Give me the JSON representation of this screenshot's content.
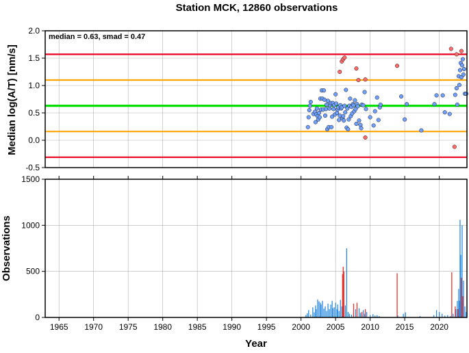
{
  "chart_data": [
    {
      "type": "scatter",
      "title": "Station MCK, 12860 observations",
      "ylabel": "Median log(A/T) [nm/s]",
      "annotation": "median = 0.63, smad = 0.47",
      "xlim": [
        1963,
        2024
      ],
      "ylim": [
        -0.5,
        2.0
      ],
      "y_ticks": [
        -0.5,
        0.0,
        0.5,
        1.0,
        1.5,
        2.0
      ],
      "y_tick_labels": [
        "-0.5",
        "0.0",
        "0.5",
        "1.0",
        "1.5",
        "2.0"
      ],
      "grid": true,
      "reference_lines": [
        {
          "value": 1.57,
          "color": "#e8001c"
        },
        {
          "value": 1.1,
          "color": "#ffa500"
        },
        {
          "value": 0.63,
          "color": "#00e000"
        },
        {
          "value": 0.16,
          "color": "#ffa500"
        },
        {
          "value": -0.31,
          "color": "#e8001c"
        }
      ],
      "series": [
        {
          "color": "#6fa0ff",
          "points": [
            [
              2001.0,
              0.24
            ],
            [
              2001.1,
              0.42
            ],
            [
              2001.2,
              0.55
            ],
            [
              2001.3,
              0.63
            ],
            [
              2001.4,
              0.7
            ],
            [
              2001.8,
              0.48
            ],
            [
              2002.0,
              0.52
            ],
            [
              2002.1,
              0.33
            ],
            [
              2002.2,
              0.47
            ],
            [
              2002.3,
              0.58
            ],
            [
              2002.4,
              0.44
            ],
            [
              2002.5,
              0.38
            ],
            [
              2002.6,
              0.5
            ],
            [
              2002.7,
              0.42
            ],
            [
              2002.8,
              0.76
            ],
            [
              2002.9,
              0.56
            ],
            [
              2003.0,
              0.91
            ],
            [
              2003.1,
              0.76
            ],
            [
              2003.2,
              0.56
            ],
            [
              2003.3,
              0.91
            ],
            [
              2003.4,
              0.74
            ],
            [
              2003.5,
              0.45
            ],
            [
              2003.6,
              0.57
            ],
            [
              2003.7,
              0.65
            ],
            [
              2003.8,
              0.2
            ],
            [
              2003.9,
              0.72
            ],
            [
              2004.0,
              0.24
            ],
            [
              2004.1,
              0.58
            ],
            [
              2004.2,
              0.64
            ],
            [
              2004.3,
              0.68
            ],
            [
              2004.4,
              0.24
            ],
            [
              2004.5,
              0.43
            ],
            [
              2004.6,
              0.68
            ],
            [
              2004.7,
              0.57
            ],
            [
              2004.8,
              0.64
            ],
            [
              2004.9,
              0.47
            ],
            [
              2005.0,
              0.84
            ],
            [
              2005.1,
              0.67
            ],
            [
              2005.2,
              0.5
            ],
            [
              2005.3,
              0.56
            ],
            [
              2005.4,
              0.6
            ],
            [
              2005.5,
              0.37
            ],
            [
              2005.6,
              0.45
            ],
            [
              2005.7,
              0.64
            ],
            [
              2005.8,
              0.58
            ],
            [
              2005.9,
              0.6
            ],
            [
              2006.0,
              0.4
            ],
            [
              2006.1,
              0.44
            ],
            [
              2006.2,
              0.36
            ],
            [
              2006.3,
              0.63
            ],
            [
              2006.4,
              0.51
            ],
            [
              2006.5,
              0.92
            ],
            [
              2006.6,
              0.23
            ],
            [
              2006.7,
              0.58
            ],
            [
              2006.8,
              0.2
            ],
            [
              2006.9,
              0.38
            ],
            [
              2007.0,
              0.63
            ],
            [
              2007.1,
              0.76
            ],
            [
              2007.2,
              0.44
            ],
            [
              2007.3,
              0.61
            ],
            [
              2007.4,
              0.49
            ],
            [
              2007.5,
              0.66
            ],
            [
              2007.6,
              0.64
            ],
            [
              2007.7,
              0.53
            ],
            [
              2007.8,
              0.73
            ],
            [
              2007.9,
              0.57
            ],
            [
              2008.0,
              0.3
            ],
            [
              2008.1,
              0.66
            ],
            [
              2008.2,
              0.62
            ],
            [
              2008.4,
              0.36
            ],
            [
              2008.6,
              0.28
            ],
            [
              2008.7,
              0.22
            ],
            [
              2008.8,
              0.65
            ],
            [
              2009.0,
              0.64
            ],
            [
              2009.2,
              0.88
            ],
            [
              2009.4,
              0.57
            ],
            [
              2010.0,
              0.42
            ],
            [
              2010.5,
              0.27
            ],
            [
              2010.7,
              0.53
            ],
            [
              2011.0,
              0.78
            ],
            [
              2011.2,
              0.37
            ],
            [
              2011.4,
              0.6
            ],
            [
              2011.5,
              0.65
            ],
            [
              2014.5,
              0.8
            ],
            [
              2015.0,
              0.38
            ],
            [
              2015.3,
              0.66
            ],
            [
              2017.4,
              0.18
            ],
            [
              2019.3,
              0.66
            ],
            [
              2019.6,
              0.82
            ],
            [
              2020.5,
              0.82
            ],
            [
              2020.8,
              0.51
            ],
            [
              2021.5,
              0.48
            ],
            [
              2022.3,
              0.83
            ],
            [
              2022.5,
              0.95
            ],
            [
              2022.6,
              0.65
            ],
            [
              2022.8,
              1.17
            ],
            [
              2022.9,
              1.01
            ],
            [
              2023.0,
              1.28
            ],
            [
              2023.1,
              1.41
            ],
            [
              2023.2,
              1.15
            ],
            [
              2023.3,
              1.37
            ],
            [
              2023.4,
              1.48
            ],
            [
              2023.5,
              1.2
            ],
            [
              2023.6,
              1.3
            ],
            [
              2023.7,
              0.85
            ],
            [
              2023.9,
              0.85
            ]
          ]
        },
        {
          "color": "#ff6a6a",
          "points": [
            [
              2005.6,
              1.25
            ],
            [
              2005.9,
              1.44
            ],
            [
              2006.1,
              1.48
            ],
            [
              2006.3,
              1.51
            ],
            [
              2008.0,
              1.31
            ],
            [
              2008.3,
              1.1
            ],
            [
              2009.3,
              1.11
            ],
            [
              2009.3,
              0.05
            ],
            [
              2013.9,
              1.36
            ],
            [
              2021.7,
              1.67
            ],
            [
              2022.2,
              -0.12
            ],
            [
              2022.5,
              1.57
            ],
            [
              2023.2,
              1.63
            ]
          ]
        }
      ]
    },
    {
      "type": "bar",
      "xlabel": "Year",
      "ylabel": "Observations",
      "xlim": [
        1963,
        2024
      ],
      "ylim": [
        0,
        1500
      ],
      "x_ticks": [
        1965,
        1970,
        1975,
        1980,
        1985,
        1990,
        1995,
        2000,
        2005,
        2010,
        2015,
        2020
      ],
      "x_tick_labels": [
        "1965",
        "1970",
        "1975",
        "1980",
        "1985",
        "1990",
        "1995",
        "2000",
        "2005",
        "2010",
        "2015",
        "2020"
      ],
      "y_ticks": [
        0,
        500,
        1000,
        1500
      ],
      "y_tick_labels": [
        "0",
        "500",
        "1000",
        "1500"
      ],
      "grid": true,
      "series": [
        {
          "color": "#2a8be0",
          "bars": [
            [
              2000.7,
              25
            ],
            [
              2000.9,
              45
            ],
            [
              2001.1,
              80
            ],
            [
              2001.4,
              30
            ],
            [
              2001.7,
              110
            ],
            [
              2001.9,
              55
            ],
            [
              2002.1,
              130
            ],
            [
              2002.2,
              90
            ],
            [
              2002.4,
              195
            ],
            [
              2002.6,
              175
            ],
            [
              2002.8,
              160
            ],
            [
              2002.9,
              140
            ],
            [
              2003.1,
              180
            ],
            [
              2003.3,
              95
            ],
            [
              2003.5,
              120
            ],
            [
              2003.7,
              70
            ],
            [
              2003.9,
              150
            ],
            [
              2004.1,
              90
            ],
            [
              2004.3,
              140
            ],
            [
              2004.5,
              180
            ],
            [
              2004.6,
              100
            ],
            [
              2004.8,
              110
            ],
            [
              2005.0,
              160
            ],
            [
              2005.2,
              90
            ],
            [
              2005.3,
              140
            ],
            [
              2005.5,
              70
            ],
            [
              2005.7,
              190
            ],
            [
              2005.9,
              120
            ],
            [
              2006.4,
              130
            ],
            [
              2006.6,
              750
            ],
            [
              2006.8,
              60
            ],
            [
              2007.0,
              40
            ],
            [
              2007.3,
              30
            ],
            [
              2007.6,
              40
            ],
            [
              2007.9,
              90
            ],
            [
              2008.4,
              100
            ],
            [
              2008.6,
              50
            ],
            [
              2008.8,
              30
            ],
            [
              2009.0,
              80
            ],
            [
              2009.2,
              40
            ],
            [
              2009.5,
              60
            ],
            [
              2010.0,
              25
            ],
            [
              2010.4,
              35
            ],
            [
              2010.7,
              20
            ],
            [
              2011.0,
              25
            ],
            [
              2011.3,
              15
            ],
            [
              2014.0,
              20
            ],
            [
              2014.8,
              40
            ],
            [
              2015.1,
              55
            ],
            [
              2017.2,
              15
            ],
            [
              2019.2,
              25
            ],
            [
              2019.6,
              80
            ],
            [
              2020.0,
              60
            ],
            [
              2020.4,
              40
            ],
            [
              2020.8,
              20
            ],
            [
              2021.2,
              25
            ],
            [
              2021.6,
              15
            ],
            [
              2022.0,
              40
            ],
            [
              2022.4,
              90
            ],
            [
              2022.6,
              180
            ],
            [
              2022.8,
              310
            ],
            [
              2022.9,
              180
            ],
            [
              2023.0,
              1060
            ],
            [
              2023.1,
              680
            ],
            [
              2023.3,
              1000
            ],
            [
              2023.5,
              400
            ],
            [
              2023.7,
              120
            ],
            [
              2023.9,
              60
            ]
          ]
        },
        {
          "color": "#e8302a",
          "bars": [
            [
              2006.0,
              470
            ],
            [
              2006.1,
              550
            ],
            [
              2006.2,
              500
            ],
            [
              2007.6,
              150
            ],
            [
              2008.1,
              160
            ],
            [
              2008.8,
              60
            ],
            [
              2009.3,
              90
            ],
            [
              2013.9,
              480
            ],
            [
              2021.8,
              490
            ],
            [
              2022.3,
              120
            ],
            [
              2022.7,
              90
            ],
            [
              2023.2,
              430
            ],
            [
              2023.4,
              230
            ]
          ]
        }
      ]
    }
  ]
}
